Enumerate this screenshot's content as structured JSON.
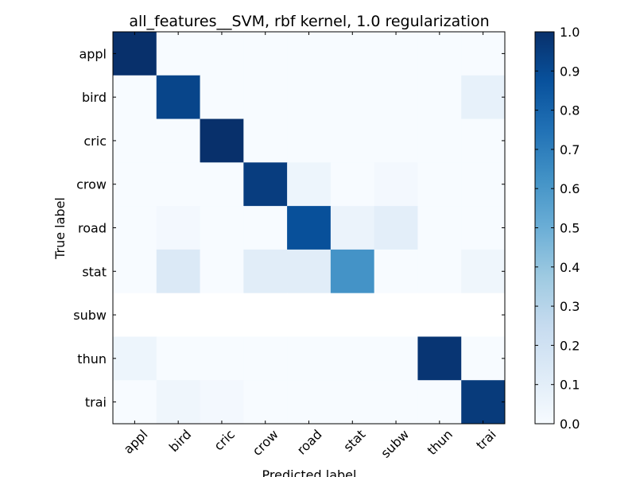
{
  "chart_data": {
    "type": "heatmap",
    "title": "all_features__SVM, rbf kernel, 1.0 regularization",
    "xlabel": "Predicted label",
    "ylabel": "True label",
    "x_categories": [
      "appl",
      "bird",
      "cric",
      "crow",
      "road",
      "stat",
      "subw",
      "thun",
      "trai"
    ],
    "y_categories": [
      "appl",
      "bird",
      "cric",
      "crow",
      "road",
      "stat",
      "subw",
      "thun",
      "trai"
    ],
    "matrix": [
      [
        1.0,
        0.0,
        0.0,
        0.0,
        0.0,
        0.0,
        0.0,
        0.0,
        0.0
      ],
      [
        0.0,
        0.92,
        0.0,
        0.0,
        0.0,
        0.0,
        0.0,
        0.0,
        0.08
      ],
      [
        0.0,
        0.0,
        1.0,
        0.0,
        0.0,
        0.0,
        0.0,
        0.0,
        0.0
      ],
      [
        0.0,
        0.0,
        0.0,
        0.95,
        0.05,
        0.0,
        0.02,
        0.0,
        0.0
      ],
      [
        0.0,
        0.02,
        0.0,
        0.0,
        0.88,
        0.06,
        0.1,
        0.0,
        0.0
      ],
      [
        0.0,
        0.14,
        0.0,
        0.11,
        0.11,
        0.62,
        0.0,
        0.0,
        0.04
      ],
      [
        null,
        null,
        null,
        null,
        null,
        null,
        null,
        null,
        null
      ],
      [
        0.05,
        0.0,
        0.0,
        0.0,
        0.0,
        0.0,
        0.0,
        0.98,
        0.0
      ],
      [
        0.0,
        0.04,
        0.02,
        0.0,
        0.0,
        0.0,
        0.0,
        0.0,
        0.96
      ]
    ],
    "colormap": "Blues",
    "colorbar": {
      "range": [
        0.0,
        1.0
      ],
      "ticks": [
        "0.0",
        "0.1",
        "0.2",
        "0.3",
        "0.4",
        "0.5",
        "0.6",
        "0.7",
        "0.8",
        "0.9",
        "1.0"
      ]
    }
  }
}
